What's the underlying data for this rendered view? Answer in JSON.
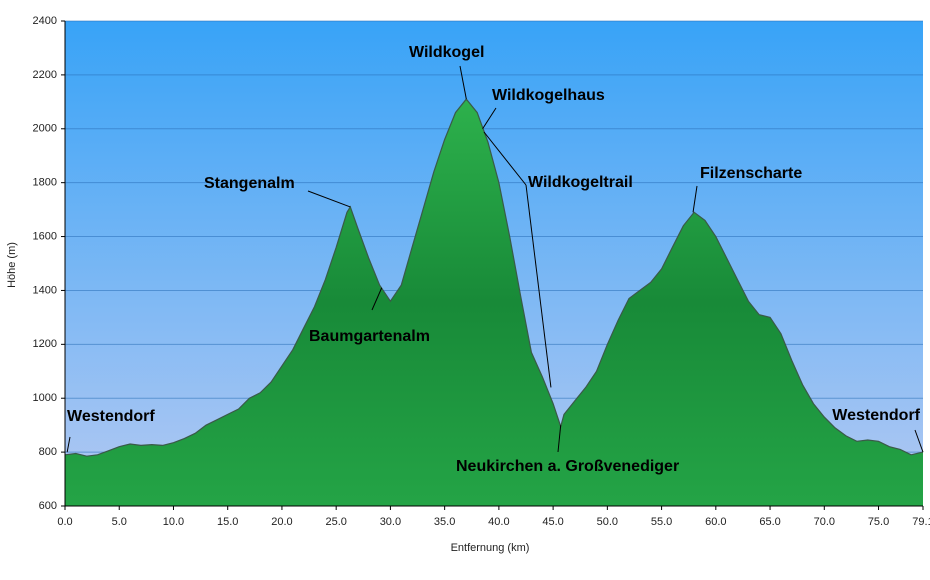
{
  "chart_data": {
    "type": "area",
    "x_label": "Entfernung   (km)",
    "y_label": "Höhe (m)",
    "color": "#1f9e42",
    "grid": true,
    "xlim": [
      0,
      79.1
    ],
    "ylim": [
      600,
      2400
    ],
    "xticks": [
      {
        "value": 0,
        "label": "0.0"
      },
      {
        "value": 5,
        "label": "5.0"
      },
      {
        "value": 10,
        "label": "10.0"
      },
      {
        "value": 15,
        "label": "15.0"
      },
      {
        "value": 20,
        "label": "20.0"
      },
      {
        "value": 25,
        "label": "25.0"
      },
      {
        "value": 30,
        "label": "30.0"
      },
      {
        "value": 35,
        "label": "35.0"
      },
      {
        "value": 40,
        "label": "40.0"
      },
      {
        "value": 45,
        "label": "45.0"
      },
      {
        "value": 50,
        "label": "50.0"
      },
      {
        "value": 55,
        "label": "55.0"
      },
      {
        "value": 60,
        "label": "60.0"
      },
      {
        "value": 65,
        "label": "65.0"
      },
      {
        "value": 70,
        "label": "70.0"
      },
      {
        "value": 75,
        "label": "75.0"
      },
      79.1
    ],
    "yticks": [
      600,
      800,
      1000,
      1200,
      1400,
      1600,
      1800,
      2000,
      2200,
      2400
    ],
    "x": [
      0,
      1,
      2,
      3,
      4,
      5,
      6,
      7,
      8,
      9,
      10,
      11,
      12,
      13,
      14,
      15,
      16,
      17,
      18,
      19,
      20,
      21,
      22,
      23,
      24,
      25,
      26,
      26.3,
      27,
      28,
      29,
      30,
      31,
      32,
      33,
      34,
      35,
      36,
      37,
      38,
      39,
      40,
      41,
      42,
      43,
      44,
      45,
      45.7,
      46,
      47,
      48,
      49,
      50,
      51,
      52,
      53,
      54,
      55,
      56,
      57,
      58,
      59,
      60,
      61,
      62,
      63,
      64,
      65,
      66,
      67,
      68,
      69,
      70,
      71,
      72,
      73,
      74,
      75,
      76,
      77,
      78,
      79.1
    ],
    "values": [
      790,
      795,
      785,
      790,
      805,
      820,
      830,
      825,
      828,
      825,
      835,
      850,
      870,
      900,
      920,
      940,
      960,
      1000,
      1020,
      1060,
      1120,
      1180,
      1260,
      1340,
      1440,
      1560,
      1690,
      1710,
      1630,
      1520,
      1420,
      1360,
      1420,
      1560,
      1700,
      1840,
      1960,
      2060,
      2110,
      2060,
      1950,
      1800,
      1600,
      1380,
      1170,
      1080,
      980,
      895,
      940,
      990,
      1040,
      1100,
      1200,
      1290,
      1370,
      1400,
      1430,
      1480,
      1560,
      1640,
      1690,
      1660,
      1600,
      1520,
      1440,
      1360,
      1310,
      1300,
      1240,
      1140,
      1050,
      980,
      930,
      890,
      860,
      840,
      845,
      840,
      820,
      810,
      790,
      800
    ],
    "annotations": [
      {
        "text": "Westendorf",
        "x": 0.2,
        "y": 800
      },
      {
        "text": "Stangenalm",
        "x": 26.3,
        "y": 1710
      },
      {
        "text": "Wildkogel",
        "x": 37,
        "y": 2110
      },
      {
        "text": "Wildkogelhaus",
        "x": 38.5,
        "y": 2000
      },
      {
        "text": "Wildkogeltrail",
        "x": 44.8,
        "y": 1040
      },
      {
        "text": "Baumgartenalm",
        "x": 29.2,
        "y": 1410
      },
      {
        "text": "Neukirchen a. Großvenediger",
        "x": 45.7,
        "y": 900
      },
      {
        "text": "Filzenscharte",
        "x": 57.9,
        "y": 1690
      },
      {
        "text": "Westendorf",
        "x": 79.1,
        "y": 800
      }
    ]
  }
}
